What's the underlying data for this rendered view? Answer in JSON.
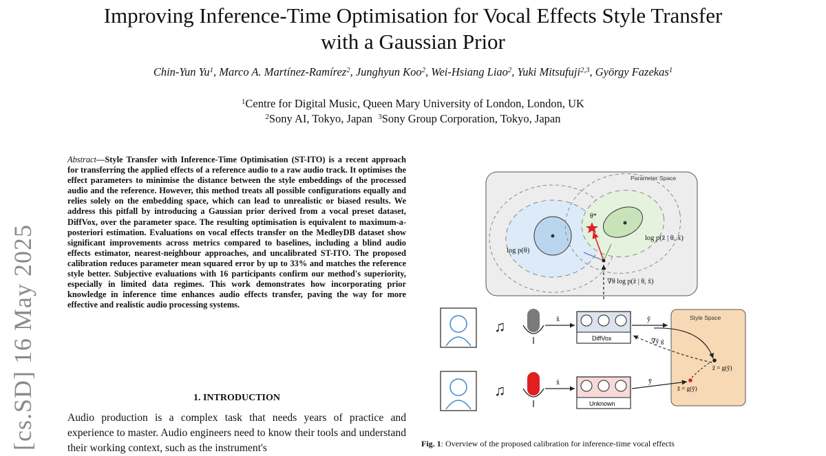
{
  "paper": {
    "title_line1": "Improving Inference-Time Optimisation for Vocal Effects Style Transfer",
    "title_line2": "with a Gaussian Prior",
    "authors": [
      {
        "name": "Chin-Yun Yu",
        "sup": "1"
      },
      {
        "name": "Marco A. Martínez-Ramírez",
        "sup": "2"
      },
      {
        "name": "Junghyun Koo",
        "sup": "2"
      },
      {
        "name": "Wei-Hsiang Liao",
        "sup": "2"
      },
      {
        "name": "Yuki Mitsufuji",
        "sup": "2,3"
      },
      {
        "name": "György Fazekas",
        "sup": "1"
      }
    ],
    "affiliations": {
      "a1_sup": "1",
      "a1": "Centre for Digital Music, Queen Mary University of London, London, UK",
      "a2_sup": "2",
      "a2": "Sony AI, Tokyo, Japan",
      "a3_sup": "3",
      "a3": "Sony Group Corporation, Tokyo, Japan"
    },
    "arxiv_stamp": "[cs.SD]  16 May 2025",
    "abstract_lead": "Abstract",
    "abstract_text": "—Style Transfer with Inference-Time Optimisation (ST-ITO) is a recent approach for transferring the applied effects of a reference audio to a raw audio track. It optimises the effect parameters to minimise the distance between the style embeddings of the processed audio and the reference. However, this method treats all possible configurations equally and relies solely on the embedding space, which can lead to unrealistic or biased results. We address this pitfall by introducing a Gaussian prior derived from a vocal preset dataset, DiffVox, over the parameter space. The resulting optimisation is equivalent to maximum-a-posteriori estimation. Evaluations on vocal effects transfer on the MedleyDB dataset show significant improvements across metrics compared to baselines, including a blind audio effects estimator, nearest-neighbour approaches, and uncalibrated ST-ITO. The proposed calibration reduces parameter mean squared error by up to 33% and matches the reference style better. Subjective evaluations with 16 participants confirm our method's superiority, especially in limited data regimes. This work demonstrates how incorporating prior knowledge in inference time enhances audio effects transfer, paving the way for more effective and realistic audio processing systems.",
    "section_heading": "1. INTRODUCTION",
    "intro_text": "Audio production is a complex task that needs years of practice and experience to master. Audio engineers need to know their tools and understand their working context, such as the instrument's",
    "caption_label": "Fig. 1",
    "caption_text": ": Overview of the proposed calibration for inference-time vocal effects"
  },
  "figure": {
    "parameter_space_label": "Parameter Space",
    "style_space_label": "Style Space",
    "prior_label": "log p(θ)",
    "likelihood_label": "log p(z̄ | θ, x̄)",
    "gradient_label": "∇θ log p(z̄ | θ, x̄)",
    "theta_star_label": "θ*",
    "x_label_top": "x̄",
    "y_label_top": "ỹ",
    "x_label_bottom": "x̄",
    "y_label_bottom": "ȳ",
    "diffvox_label": "DiffVox",
    "unknown_label": "Unknown",
    "grad_y_label": "∇ỹ g",
    "z_tilde_label": "z̃ = g(ỹ)",
    "z_bar_label": "z̄ = g(ȳ)",
    "colors": {
      "param_bg": "#ededed",
      "style_bg": "#f7d9b6",
      "prior_fill": "#dcebf7",
      "likelihood_fill": "#e3f2dc",
      "star": "#e02020",
      "diffvox_fill": "#dde3ee",
      "unknown_fill": "#f6dada",
      "mic_top": "#7a7a7a",
      "mic_bottom": "#e02020"
    }
  }
}
